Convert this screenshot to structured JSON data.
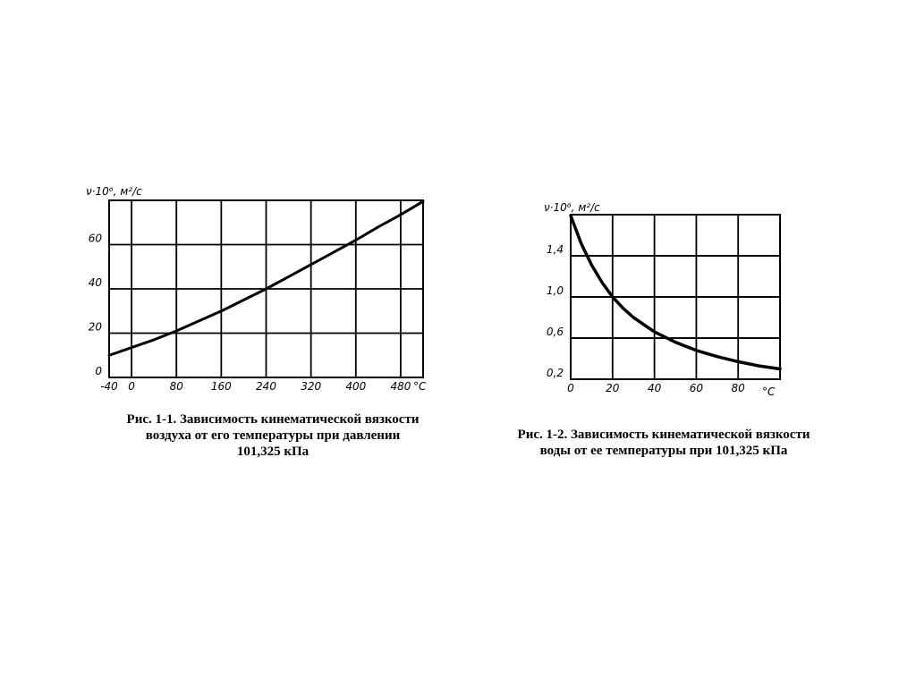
{
  "chart_data": [
    {
      "type": "line",
      "ylabel": "ν·10⁶, м²/с",
      "xunit": "°C",
      "xlim": [
        -40,
        520
      ],
      "ylim": [
        0,
        80
      ],
      "xticks": [
        -40,
        0,
        80,
        160,
        240,
        320,
        400,
        480
      ],
      "xtick_labels": [
        "-40",
        "0",
        "80",
        "160",
        "240",
        "320",
        "400",
        "480"
      ],
      "yticks": [
        0,
        20,
        40,
        60
      ],
      "ytick_labels": [
        "0",
        "20",
        "40",
        "60"
      ],
      "grid": true,
      "series": [
        {
          "x": [
            -40,
            0,
            40,
            80,
            120,
            160,
            200,
            240,
            280,
            320,
            360,
            400,
            440,
            480,
            520
          ],
          "values": [
            10.0,
            13.5,
            17.0,
            21.0,
            25.5,
            30.0,
            35.0,
            40.0,
            45.5,
            51.0,
            56.5,
            62.0,
            68.0,
            73.5,
            79.5
          ]
        }
      ],
      "caption": [
        "Рис. 1-1. Зависимость кинематической вязкости",
        "воздуха от его температуры при давлении",
        "101,325 кПа"
      ]
    },
    {
      "type": "line",
      "ylabel": "ν·10⁶, м²/с",
      "xunit": "°С",
      "xlim": [
        0,
        100
      ],
      "ylim": [
        0.2,
        1.8
      ],
      "xticks": [
        0,
        20,
        40,
        60,
        80
      ],
      "xtick_labels": [
        "0",
        "20",
        "40",
        "60",
        "80"
      ],
      "yticks": [
        0.2,
        0.6,
        1.0,
        1.4
      ],
      "ytick_labels": [
        "0,2",
        "0,6",
        "1,0",
        "1,4"
      ],
      "grid": true,
      "series": [
        {
          "x": [
            0,
            5,
            10,
            15,
            20,
            25,
            30,
            40,
            50,
            60,
            70,
            80,
            90,
            100
          ],
          "values": [
            1.79,
            1.52,
            1.31,
            1.14,
            1.0,
            0.89,
            0.8,
            0.66,
            0.56,
            0.48,
            0.42,
            0.37,
            0.33,
            0.3
          ]
        }
      ],
      "caption": [
        "Рис. 1-2. Зависимость кинематической вязкости",
        "воды от ее температуры при 101,325 кПа"
      ]
    }
  ]
}
